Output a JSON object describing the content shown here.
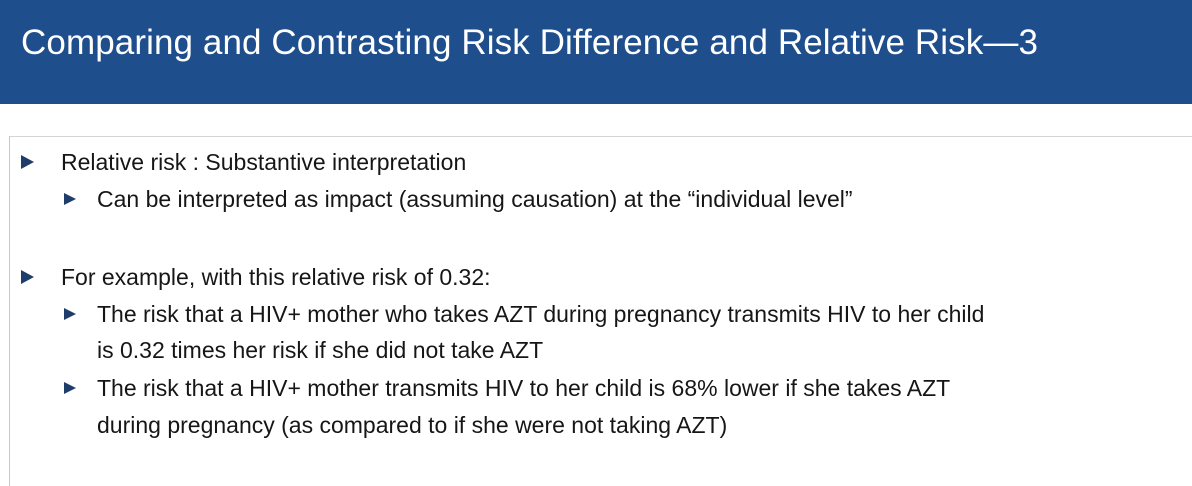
{
  "slide": {
    "title": "Comparing and Contrasting Risk Difference and Relative Risk—3",
    "colors": {
      "title_bar": "#1f4e8c",
      "title_text": "#ffffff",
      "bullet_arrow": "#1f3d6b",
      "body_text": "#161616"
    },
    "bullets": [
      {
        "level": 1,
        "lines": [
          "Relative risk : Substantive interpretation"
        ],
        "icon": "triangle-bullet-icon"
      },
      {
        "level": 2,
        "lines": [
          "Can be interpreted as impact (assuming causation) at the “individual level”"
        ],
        "icon": "triangle-bullet-icon"
      },
      {
        "level": 1,
        "lines": [
          "For example, with this relative risk of 0.32:"
        ],
        "icon": "triangle-bullet-icon"
      },
      {
        "level": 2,
        "lines": [
          "The risk that a HIV+ mother who takes AZT during pregnancy transmits HIV to her child",
          "is 0.32 times her risk if she did not take AZT"
        ],
        "icon": "triangle-bullet-icon"
      },
      {
        "level": 2,
        "lines": [
          "The risk that a HIV+ mother transmits HIV to her child is 68% lower if she takes AZT",
          "during pregnancy (as compared to if she were not taking AZT)"
        ],
        "icon": "triangle-bullet-icon"
      }
    ]
  }
}
